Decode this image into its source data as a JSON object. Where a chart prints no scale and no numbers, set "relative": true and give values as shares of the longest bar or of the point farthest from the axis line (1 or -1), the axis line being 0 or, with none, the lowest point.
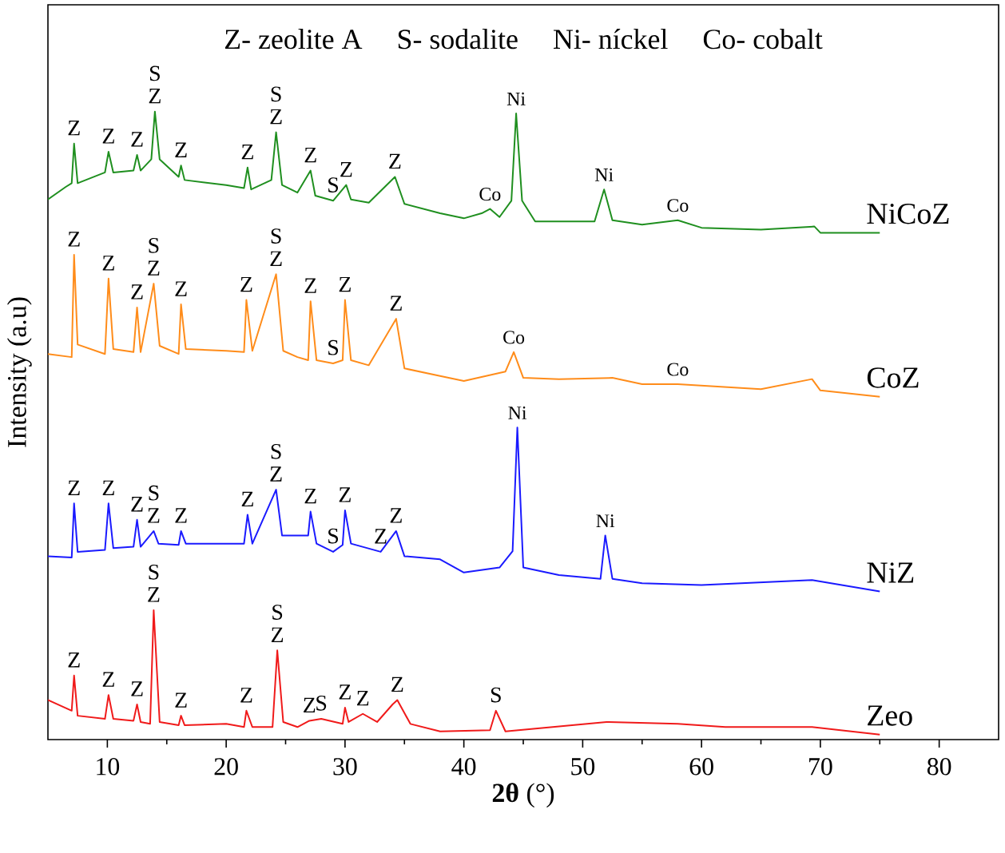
{
  "chart_data": {
    "type": "line",
    "xlabel": "**2θ** (°)",
    "ylabel": "Intensity (a.u)",
    "relative": true,
    "legend": false,
    "grid": false,
    "marker": "none",
    "line_style": "solid",
    "xlim": [
      5,
      85
    ],
    "xticks": [
      10,
      20,
      30,
      40,
      50,
      60,
      70,
      80
    ],
    "series": [
      {
        "name": "NiCoZ",
        "color": "#1f8f1f",
        "x": [
          5,
          6.5,
          7.0,
          7.2,
          7.5,
          9.8,
          10.1,
          10.5,
          12.2,
          12.5,
          12.8,
          13.7,
          14.0,
          14.4,
          16.0,
          16.2,
          16.5,
          20,
          21.5,
          21.8,
          22.1,
          23.8,
          24.2,
          24.7,
          26,
          27.1,
          27.5,
          29,
          30.1,
          30.5,
          32,
          34.2,
          35,
          38,
          40,
          41.5,
          42.2,
          43,
          44.0,
          44.4,
          44.9,
          46,
          51,
          51.8,
          52.5,
          55,
          58,
          60,
          65,
          69.5,
          70,
          75
        ],
        "values": [
          0.86,
          0.88,
          0.886,
          0.949,
          0.886,
          0.903,
          0.936,
          0.903,
          0.906,
          0.931,
          0.906,
          0.924,
          1.0,
          0.924,
          0.896,
          0.914,
          0.891,
          0.883,
          0.878,
          0.911,
          0.876,
          0.891,
          0.967,
          0.883,
          0.871,
          0.906,
          0.866,
          0.858,
          0.883,
          0.86,
          0.855,
          0.896,
          0.853,
          0.838,
          0.83,
          0.838,
          0.845,
          0.832,
          0.858,
          0.997,
          0.858,
          0.825,
          0.825,
          0.876,
          0.827,
          0.82,
          0.827,
          0.815,
          0.812,
          0.817,
          0.807,
          0.807
        ]
      },
      {
        "name": "CoZ",
        "color": "#ff8c1a",
        "x": [
          5,
          7.0,
          7.2,
          7.5,
          9.8,
          10.1,
          10.5,
          12.2,
          12.5,
          12.8,
          13.9,
          14.4,
          16.0,
          16.2,
          16.6,
          20,
          21.5,
          21.7,
          22.2,
          24.2,
          24.8,
          26,
          26.9,
          27.1,
          27.6,
          29,
          29.8,
          30.0,
          30.5,
          32,
          34.3,
          35,
          38,
          40,
          43.5,
          44.2,
          45,
          48,
          52.5,
          55,
          58,
          65,
          69.3,
          70,
          75
        ],
        "values": [
          0.614,
          0.609,
          0.772,
          0.629,
          0.614,
          0.734,
          0.622,
          0.617,
          0.688,
          0.617,
          0.726,
          0.627,
          0.614,
          0.693,
          0.622,
          0.619,
          0.617,
          0.7,
          0.619,
          0.741,
          0.619,
          0.609,
          0.604,
          0.698,
          0.604,
          0.599,
          0.604,
          0.7,
          0.604,
          0.596,
          0.67,
          0.591,
          0.579,
          0.571,
          0.586,
          0.617,
          0.576,
          0.574,
          0.576,
          0.566,
          0.566,
          0.558,
          0.574,
          0.556,
          0.546
        ]
      },
      {
        "name": "NiZ",
        "color": "#1a1aff",
        "x": [
          5,
          7.0,
          7.2,
          7.5,
          9.8,
          10.1,
          10.5,
          12.2,
          12.5,
          12.8,
          13.9,
          14.3,
          16.0,
          16.2,
          16.6,
          20,
          21.5,
          21.8,
          22.2,
          24.2,
          24.7,
          26,
          26.9,
          27.1,
          27.6,
          29,
          29.8,
          30.0,
          30.5,
          33,
          34.3,
          35,
          38,
          40,
          43,
          44.1,
          44.5,
          45,
          48,
          51.5,
          51.9,
          52.5,
          55,
          60,
          69.3,
          75
        ],
        "values": [
          0.292,
          0.29,
          0.376,
          0.299,
          0.302,
          0.376,
          0.305,
          0.307,
          0.35,
          0.307,
          0.332,
          0.312,
          0.31,
          0.332,
          0.312,
          0.312,
          0.312,
          0.358,
          0.312,
          0.398,
          0.325,
          0.325,
          0.325,
          0.363,
          0.312,
          0.299,
          0.31,
          0.365,
          0.312,
          0.299,
          0.332,
          0.292,
          0.287,
          0.266,
          0.274,
          0.3,
          0.497,
          0.274,
          0.262,
          0.256,
          0.325,
          0.256,
          0.249,
          0.246,
          0.254,
          0.236
        ]
      },
      {
        "name": "Zeo",
        "color": "#f01a1a",
        "x": [
          5,
          7.0,
          7.2,
          7.5,
          9.8,
          10.1,
          10.5,
          12.2,
          12.5,
          12.8,
          13.6,
          13.9,
          14.4,
          16.0,
          16.2,
          16.5,
          20,
          21.5,
          21.7,
          22.2,
          23.9,
          24.3,
          24.8,
          26,
          27.0,
          28,
          29.8,
          30.0,
          30.3,
          31.5,
          32.7,
          34.0,
          34.4,
          35.5,
          38,
          42.2,
          42.7,
          43.5,
          52,
          58,
          62,
          69.3,
          75
        ],
        "values": [
          0.063,
          0.046,
          0.102,
          0.038,
          0.033,
          0.071,
          0.033,
          0.03,
          0.056,
          0.028,
          0.025,
          0.206,
          0.028,
          0.023,
          0.038,
          0.023,
          0.025,
          0.02,
          0.046,
          0.02,
          0.02,
          0.142,
          0.028,
          0.02,
          0.03,
          0.033,
          0.025,
          0.051,
          0.028,
          0.041,
          0.028,
          0.056,
          0.063,
          0.025,
          0.013,
          0.015,
          0.046,
          0.013,
          0.028,
          0.025,
          0.02,
          0.02,
          0.008
        ]
      }
    ],
    "annotations": [
      "Z- zeolite A",
      "S- sodalite",
      "Ni- níckel",
      "Co- cobalt",
      {
        "text": "Z",
        "x": 7.2,
        "y": 0.949
      },
      {
        "text": "Z",
        "x": 10.1,
        "y": 0.936
      },
      {
        "text": "Z",
        "x": 12.5,
        "y": 0.931
      },
      {
        "text": "Z",
        "x": 14.0,
        "y": 1.0
      },
      {
        "text": "S",
        "x": 14.0,
        "y": 1.0
      },
      {
        "text": "Z",
        "x": 16.2,
        "y": 0.914
      },
      {
        "text": "Z",
        "x": 21.8,
        "y": 0.911
      },
      {
        "text": "Z",
        "x": 24.2,
        "y": 0.967
      },
      {
        "text": "S",
        "x": 24.2,
        "y": 0.967
      },
      {
        "text": "Z",
        "x": 27.1,
        "y": 0.906
      },
      {
        "text": "S",
        "x": 29,
        "y": 0.858
      },
      {
        "text": "Z",
        "x": 30.1,
        "y": 0.883
      },
      {
        "text": "Z",
        "x": 34.2,
        "y": 0.896
      },
      {
        "text": "Co",
        "x": 42.2,
        "y": 0.845
      },
      {
        "text": "Ni",
        "x": 44.4,
        "y": 0.997
      },
      {
        "text": "Ni",
        "x": 51.8,
        "y": 0.876
      },
      {
        "text": "Co",
        "x": 58,
        "y": 0.827
      },
      {
        "text": "Z",
        "x": 7.2,
        "y": 0.772
      },
      {
        "text": "Z",
        "x": 10.1,
        "y": 0.734
      },
      {
        "text": "Z",
        "x": 12.5,
        "y": 0.688
      },
      {
        "text": "Z",
        "x": 13.9,
        "y": 0.726
      },
      {
        "text": "S",
        "x": 13.9,
        "y": 0.726
      },
      {
        "text": "Z",
        "x": 16.2,
        "y": 0.693
      },
      {
        "text": "Z",
        "x": 21.7,
        "y": 0.7
      },
      {
        "text": "Z",
        "x": 24.2,
        "y": 0.741
      },
      {
        "text": "S",
        "x": 24.2,
        "y": 0.741
      },
      {
        "text": "Z",
        "x": 27.1,
        "y": 0.698
      },
      {
        "text": "S",
        "x": 29,
        "y": 0.599
      },
      {
        "text": "Z",
        "x": 30.0,
        "y": 0.7
      },
      {
        "text": "Z",
        "x": 34.3,
        "y": 0.67
      },
      {
        "text": "Co",
        "x": 44.2,
        "y": 0.617
      },
      {
        "text": "Co",
        "x": 58,
        "y": 0.566
      },
      {
        "text": "Z",
        "x": 7.2,
        "y": 0.376
      },
      {
        "text": "Z",
        "x": 10.1,
        "y": 0.376
      },
      {
        "text": "Z",
        "x": 12.5,
        "y": 0.35
      },
      {
        "text": "Z",
        "x": 13.9,
        "y": 0.332
      },
      {
        "text": "S",
        "x": 13.9,
        "y": 0.332
      },
      {
        "text": "Z",
        "x": 16.2,
        "y": 0.332
      },
      {
        "text": "Z",
        "x": 21.8,
        "y": 0.358
      },
      {
        "text": "Z",
        "x": 24.2,
        "y": 0.398
      },
      {
        "text": "S",
        "x": 24.2,
        "y": 0.398
      },
      {
        "text": "Z",
        "x": 27.1,
        "y": 0.363
      },
      {
        "text": "S",
        "x": 29,
        "y": 0.299
      },
      {
        "text": "Z",
        "x": 30.0,
        "y": 0.365
      },
      {
        "text": "Z",
        "x": 33,
        "y": 0.299
      },
      {
        "text": "Z",
        "x": 34.3,
        "y": 0.332
      },
      {
        "text": "Ni",
        "x": 44.5,
        "y": 0.497
      },
      {
        "text": "Ni",
        "x": 51.9,
        "y": 0.325
      },
      {
        "text": "Z",
        "x": 7.2,
        "y": 0.102
      },
      {
        "text": "Z",
        "x": 10.1,
        "y": 0.071
      },
      {
        "text": "Z",
        "x": 12.5,
        "y": 0.056
      },
      {
        "text": "Z",
        "x": 13.9,
        "y": 0.206
      },
      {
        "text": "S",
        "x": 13.9,
        "y": 0.206
      },
      {
        "text": "Z",
        "x": 16.2,
        "y": 0.038
      },
      {
        "text": "Z",
        "x": 21.7,
        "y": 0.046
      },
      {
        "text": "Z",
        "x": 24.3,
        "y": 0.142
      },
      {
        "text": "S",
        "x": 24.3,
        "y": 0.142
      },
      {
        "text": "Z",
        "x": 27.0,
        "y": 0.03
      },
      {
        "text": "S",
        "x": 28,
        "y": 0.033
      },
      {
        "text": "Z",
        "x": 30.0,
        "y": 0.051
      },
      {
        "text": "Z",
        "x": 31.5,
        "y": 0.041
      },
      {
        "text": "Z",
        "x": 34.4,
        "y": 0.063
      },
      {
        "text": "S",
        "x": 42.7,
        "y": 0.046
      }
    ]
  }
}
